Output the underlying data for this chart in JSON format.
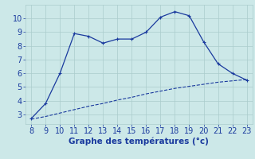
{
  "x_main": [
    8,
    9,
    10,
    11,
    12,
    13,
    14,
    15,
    16,
    17,
    18,
    19,
    20,
    21,
    22,
    23
  ],
  "y_main": [
    2.7,
    3.8,
    6.0,
    8.9,
    8.7,
    8.2,
    8.5,
    8.5,
    9.0,
    10.1,
    10.5,
    10.2,
    8.3,
    6.7,
    6.0,
    5.5
  ],
  "x_ref": [
    8,
    9,
    10,
    11,
    12,
    13,
    14,
    15,
    16,
    17,
    18,
    19,
    20,
    21,
    22,
    23
  ],
  "y_ref": [
    2.65,
    2.85,
    3.1,
    3.35,
    3.6,
    3.8,
    4.05,
    4.25,
    4.5,
    4.7,
    4.9,
    5.05,
    5.2,
    5.35,
    5.45,
    5.55
  ],
  "line_color": "#1a3a9e",
  "bg_color": "#cce8e8",
  "grid_color": "#aacccc",
  "xlabel": "Graphe des températures (°c)",
  "xlim": [
    7.6,
    23.4
  ],
  "ylim": [
    2.3,
    11.0
  ],
  "yticks": [
    3,
    4,
    5,
    6,
    7,
    8,
    9,
    10
  ],
  "xticks": [
    8,
    9,
    10,
    11,
    12,
    13,
    14,
    15,
    16,
    17,
    18,
    19,
    20,
    21,
    22,
    23
  ],
  "tick_fontsize": 7,
  "xlabel_fontsize": 7.5
}
